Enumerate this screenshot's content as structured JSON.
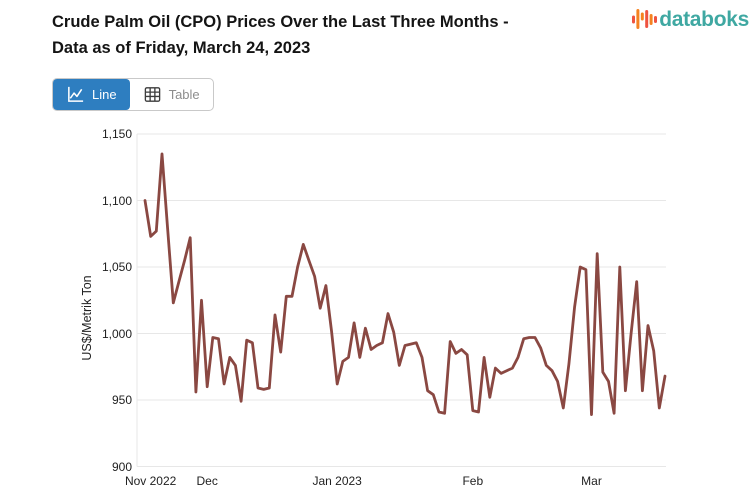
{
  "header": {
    "title_line1": "Crude Palm Oil (CPO) Prices Over the Last Three Months -",
    "title_line2": "Data as of Friday, March 24, 2023",
    "logo_text": "databoks"
  },
  "toolbar": {
    "line_label": "Line",
    "table_label": "Table"
  },
  "colors": {
    "line": "#8a4842",
    "active_button_bg": "#2e7ec0",
    "logo_teal": "#3fa8a2",
    "logo_orange": "#f58220",
    "logo_red": "#ee5340",
    "grid": "#e7e7e7",
    "tick_text": "#1f1f1f"
  },
  "chart_data": {
    "type": "line",
    "title": "Crude Palm Oil (CPO) Prices Over the Last Three Months - Data as of Friday, March 24, 2023",
    "xlabel": "",
    "ylabel": "US$/Metrik Ton",
    "ylim": [
      900,
      1150
    ],
    "grid": true,
    "legend": false,
    "y_ticks": [
      "1,150",
      "1,100",
      "1,050",
      "1,000",
      "950",
      "900"
    ],
    "x_ticks": [
      {
        "label": "Nov 2022",
        "index": 1
      },
      {
        "label": "Dec",
        "index": 11
      },
      {
        "label": "Jan 2023",
        "index": 34
      },
      {
        "label": "Feb",
        "index": 58
      },
      {
        "label": "Mar",
        "index": 79
      }
    ],
    "series_name": "CPO price (US$/Metrik Ton)",
    "values": [
      1100,
      1073,
      1077,
      1135,
      1079,
      1023,
      1039,
      1055,
      1072,
      956,
      1025,
      960,
      997,
      996,
      962,
      982,
      976,
      949,
      995,
      993,
      959,
      958,
      959,
      1014,
      986,
      1028,
      1028,
      1050,
      1067,
      1055,
      1043,
      1019,
      1036,
      1002,
      962,
      979,
      982,
      1008,
      982,
      1004,
      988,
      991,
      993,
      1015,
      1001,
      976,
      991,
      992,
      993,
      982,
      957,
      954,
      941,
      940,
      994,
      985,
      988,
      984,
      942,
      941,
      982,
      952,
      974,
      970,
      972,
      974,
      982,
      996,
      997,
      997,
      989,
      976,
      972,
      964,
      944,
      977,
      1020,
      1050,
      1048,
      939,
      1060,
      971,
      964,
      940,
      1050,
      957,
      1000,
      1039,
      957,
      1006,
      987,
      944,
      968
    ]
  }
}
